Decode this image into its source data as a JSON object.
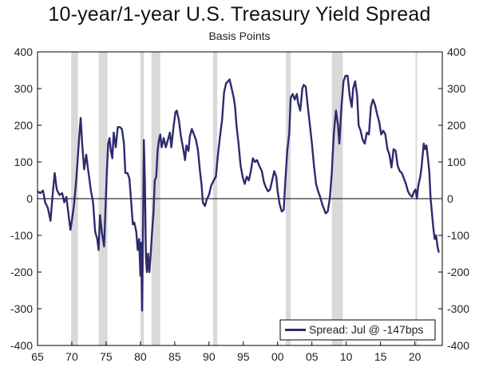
{
  "chart_data": {
    "type": "line",
    "title": "10-year/1-year U.S. Treasury Yield Spread",
    "subtitle": "Basis Points",
    "xlabel": "",
    "ylabel": "",
    "xlim": [
      1965,
      2024
    ],
    "ylim": [
      -400,
      400
    ],
    "x_ticks": [
      1965,
      1970,
      1975,
      1980,
      1985,
      1990,
      1995,
      2000,
      2005,
      2010,
      2015,
      2020
    ],
    "x_tick_labels": [
      "65",
      "70",
      "75",
      "80",
      "85",
      "90",
      "95",
      "00",
      "05",
      "10",
      "15",
      "20"
    ],
    "y_ticks": [
      -400,
      -300,
      -200,
      -100,
      0,
      100,
      200,
      300,
      400
    ],
    "y_tick_labels": [
      "-400",
      "-300",
      "-200",
      "-100",
      "0",
      "100",
      "200",
      "300",
      "400"
    ],
    "y_axis_sides": "left and right",
    "grid": false,
    "zero_line": true,
    "legend": {
      "label": "Spread: Jul @ -147bps",
      "placement": "bottom-right"
    },
    "colors": {
      "line": "#2e2a6e",
      "recession": "#d9d9d9",
      "axis": "#000000"
    },
    "recessions": [
      [
        1969.9,
        1970.9
      ],
      [
        1973.9,
        1975.2
      ],
      [
        1980.0,
        1980.5
      ],
      [
        1981.6,
        1982.9
      ],
      [
        1990.6,
        1991.2
      ],
      [
        2001.2,
        2001.9
      ],
      [
        2007.9,
        2009.5
      ],
      [
        2020.1,
        2020.3
      ]
    ],
    "series": [
      {
        "values": [
          [
            1965.0,
            20
          ],
          [
            1965.4,
            15
          ],
          [
            1965.8,
            22
          ],
          [
            1966.1,
            -10
          ],
          [
            1966.5,
            -25
          ],
          [
            1966.9,
            -60
          ],
          [
            1967.2,
            10
          ],
          [
            1967.5,
            70
          ],
          [
            1967.8,
            25
          ],
          [
            1968.2,
            10
          ],
          [
            1968.6,
            15
          ],
          [
            1968.9,
            -10
          ],
          [
            1969.2,
            5
          ],
          [
            1969.5,
            -40
          ],
          [
            1969.8,
            -85
          ],
          [
            1970.0,
            -60
          ],
          [
            1970.3,
            -20
          ],
          [
            1970.6,
            40
          ],
          [
            1970.8,
            90
          ],
          [
            1971.1,
            175
          ],
          [
            1971.3,
            220
          ],
          [
            1971.5,
            150
          ],
          [
            1971.8,
            80
          ],
          [
            1972.1,
            120
          ],
          [
            1972.4,
            75
          ],
          [
            1972.8,
            20
          ],
          [
            1973.1,
            -10
          ],
          [
            1973.4,
            -90
          ],
          [
            1973.7,
            -110
          ],
          [
            1973.9,
            -140
          ],
          [
            1974.1,
            -45
          ],
          [
            1974.4,
            -95
          ],
          [
            1974.7,
            -130
          ],
          [
            1974.9,
            -30
          ],
          [
            1975.1,
            70
          ],
          [
            1975.3,
            150
          ],
          [
            1975.5,
            165
          ],
          [
            1975.7,
            130
          ],
          [
            1975.9,
            110
          ],
          [
            1976.1,
            180
          ],
          [
            1976.4,
            140
          ],
          [
            1976.7,
            195
          ],
          [
            1977.0,
            195
          ],
          [
            1977.3,
            190
          ],
          [
            1977.6,
            150
          ],
          [
            1977.8,
            70
          ],
          [
            1978.1,
            70
          ],
          [
            1978.4,
            55
          ],
          [
            1978.7,
            -20
          ],
          [
            1978.9,
            -70
          ],
          [
            1979.1,
            -65
          ],
          [
            1979.4,
            -90
          ],
          [
            1979.6,
            -140
          ],
          [
            1979.8,
            -110
          ],
          [
            1980.0,
            -210
          ],
          [
            1980.1,
            -120
          ],
          [
            1980.25,
            -305
          ],
          [
            1980.4,
            -50
          ],
          [
            1980.5,
            160
          ],
          [
            1980.65,
            50
          ],
          [
            1980.8,
            -160
          ],
          [
            1980.95,
            -200
          ],
          [
            1981.1,
            -150
          ],
          [
            1981.3,
            -200
          ],
          [
            1981.5,
            -150
          ],
          [
            1981.7,
            -90
          ],
          [
            1981.9,
            -40
          ],
          [
            1982.1,
            50
          ],
          [
            1982.3,
            60
          ],
          [
            1982.5,
            130
          ],
          [
            1982.7,
            160
          ],
          [
            1982.9,
            175
          ],
          [
            1983.1,
            140
          ],
          [
            1983.4,
            165
          ],
          [
            1983.7,
            140
          ],
          [
            1984.0,
            160
          ],
          [
            1984.3,
            180
          ],
          [
            1984.5,
            140
          ],
          [
            1984.8,
            190
          ],
          [
            1985.1,
            235
          ],
          [
            1985.3,
            240
          ],
          [
            1985.6,
            215
          ],
          [
            1985.9,
            170
          ],
          [
            1986.1,
            150
          ],
          [
            1986.3,
            130
          ],
          [
            1986.5,
            105
          ],
          [
            1986.7,
            145
          ],
          [
            1987.0,
            130
          ],
          [
            1987.2,
            170
          ],
          [
            1987.5,
            190
          ],
          [
            1987.8,
            175
          ],
          [
            1988.1,
            160
          ],
          [
            1988.4,
            130
          ],
          [
            1988.7,
            70
          ],
          [
            1988.9,
            40
          ],
          [
            1989.1,
            -10
          ],
          [
            1989.4,
            -20
          ],
          [
            1989.7,
            0
          ],
          [
            1990.0,
            10
          ],
          [
            1990.3,
            35
          ],
          [
            1990.7,
            50
          ],
          [
            1991.0,
            60
          ],
          [
            1991.3,
            120
          ],
          [
            1991.6,
            170
          ],
          [
            1991.9,
            215
          ],
          [
            1992.2,
            290
          ],
          [
            1992.5,
            315
          ],
          [
            1992.8,
            320
          ],
          [
            1993.0,
            325
          ],
          [
            1993.3,
            300
          ],
          [
            1993.6,
            275
          ],
          [
            1993.8,
            250
          ],
          [
            1994.0,
            200
          ],
          [
            1994.3,
            150
          ],
          [
            1994.6,
            90
          ],
          [
            1994.9,
            60
          ],
          [
            1995.2,
            40
          ],
          [
            1995.5,
            60
          ],
          [
            1995.8,
            50
          ],
          [
            1996.1,
            75
          ],
          [
            1996.4,
            110
          ],
          [
            1996.7,
            100
          ],
          [
            1997.0,
            105
          ],
          [
            1997.3,
            90
          ],
          [
            1997.7,
            75
          ],
          [
            1998.0,
            45
          ],
          [
            1998.3,
            30
          ],
          [
            1998.6,
            20
          ],
          [
            1998.9,
            25
          ],
          [
            1999.2,
            50
          ],
          [
            1999.5,
            75
          ],
          [
            1999.8,
            60
          ],
          [
            2000.0,
            20
          ],
          [
            2000.3,
            -15
          ],
          [
            2000.6,
            -35
          ],
          [
            2000.9,
            -30
          ],
          [
            2001.1,
            40
          ],
          [
            2001.4,
            130
          ],
          [
            2001.7,
            180
          ],
          [
            2001.9,
            275
          ],
          [
            2002.2,
            285
          ],
          [
            2002.5,
            270
          ],
          [
            2002.8,
            285
          ],
          [
            2003.0,
            260
          ],
          [
            2003.3,
            240
          ],
          [
            2003.6,
            300
          ],
          [
            2003.8,
            310
          ],
          [
            2004.1,
            305
          ],
          [
            2004.4,
            250
          ],
          [
            2004.7,
            200
          ],
          [
            2005.0,
            150
          ],
          [
            2005.3,
            90
          ],
          [
            2005.6,
            40
          ],
          [
            2005.9,
            20
          ],
          [
            2006.2,
            5
          ],
          [
            2006.5,
            -15
          ],
          [
            2006.8,
            -30
          ],
          [
            2007.0,
            -40
          ],
          [
            2007.3,
            -35
          ],
          [
            2007.6,
            0
          ],
          [
            2007.9,
            70
          ],
          [
            2008.2,
            180
          ],
          [
            2008.5,
            240
          ],
          [
            2008.8,
            200
          ],
          [
            2009.0,
            150
          ],
          [
            2009.3,
            250
          ],
          [
            2009.6,
            320
          ],
          [
            2009.9,
            335
          ],
          [
            2010.2,
            335
          ],
          [
            2010.5,
            280
          ],
          [
            2010.8,
            250
          ],
          [
            2011.0,
            300
          ],
          [
            2011.3,
            320
          ],
          [
            2011.6,
            280
          ],
          [
            2011.8,
            200
          ],
          [
            2012.1,
            185
          ],
          [
            2012.4,
            160
          ],
          [
            2012.7,
            150
          ],
          [
            2013.0,
            180
          ],
          [
            2013.3,
            175
          ],
          [
            2013.6,
            250
          ],
          [
            2013.9,
            270
          ],
          [
            2014.2,
            255
          ],
          [
            2014.5,
            230
          ],
          [
            2014.8,
            210
          ],
          [
            2015.1,
            175
          ],
          [
            2015.4,
            185
          ],
          [
            2015.7,
            175
          ],
          [
            2016.0,
            135
          ],
          [
            2016.3,
            120
          ],
          [
            2016.6,
            85
          ],
          [
            2016.9,
            135
          ],
          [
            2017.2,
            130
          ],
          [
            2017.5,
            90
          ],
          [
            2017.8,
            75
          ],
          [
            2018.1,
            70
          ],
          [
            2018.4,
            55
          ],
          [
            2018.7,
            40
          ],
          [
            2019.0,
            20
          ],
          [
            2019.3,
            10
          ],
          [
            2019.6,
            5
          ],
          [
            2019.9,
            20
          ],
          [
            2020.1,
            25
          ],
          [
            2020.3,
            0
          ],
          [
            2020.5,
            35
          ],
          [
            2020.8,
            60
          ],
          [
            2021.0,
            90
          ],
          [
            2021.3,
            150
          ],
          [
            2021.5,
            135
          ],
          [
            2021.7,
            145
          ],
          [
            2021.9,
            110
          ],
          [
            2022.1,
            75
          ],
          [
            2022.3,
            0
          ],
          [
            2022.5,
            -40
          ],
          [
            2022.7,
            -80
          ],
          [
            2022.9,
            -110
          ],
          [
            2023.1,
            -100
          ],
          [
            2023.3,
            -130
          ],
          [
            2023.5,
            -147
          ]
        ]
      }
    ]
  }
}
